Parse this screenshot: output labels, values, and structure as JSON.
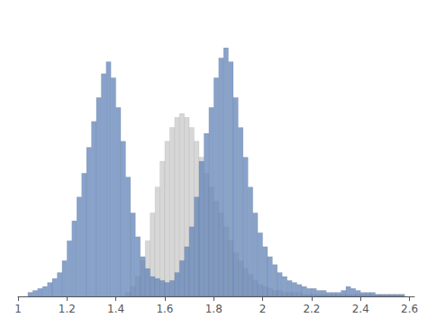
{
  "chart_data": {
    "type": "histogram",
    "series": [
      {
        "color": "#cccccc",
        "bins": [
          1.44,
          1.46,
          1.48,
          1.5,
          1.52,
          1.54,
          1.56,
          1.58,
          1.6,
          1.62,
          1.64,
          1.66,
          1.68,
          1.7,
          1.72,
          1.74,
          1.76,
          1.78,
          1.8,
          1.82,
          1.84,
          1.86,
          1.88,
          1.9,
          1.92,
          1.94,
          1.96,
          1.98,
          2.0,
          2.02,
          2.04,
          2.06,
          2.08,
          2.1,
          2.12,
          2.14,
          2.16,
          2.18,
          2.2,
          2.22,
          2.24,
          2.26,
          2.28,
          2.3,
          2.32,
          2.34,
          2.36,
          2.38,
          2.4,
          2.42,
          2.44,
          2.46,
          2.48,
          2.5,
          2.52,
          2.54,
          2.56,
          2.58
        ],
        "values": [
          2,
          5,
          10,
          18,
          28,
          42,
          55,
          68,
          78,
          85,
          90,
          92,
          90,
          85,
          78,
          70,
          62,
          55,
          48,
          42,
          35,
          28,
          22,
          18,
          14,
          11,
          8,
          6,
          5,
          4,
          3,
          3,
          2,
          2,
          2,
          2,
          1,
          1,
          1,
          1,
          1,
          1,
          1,
          1,
          1,
          1,
          1,
          1,
          1,
          1,
          1,
          1,
          1,
          1,
          1,
          1,
          1
        ]
      },
      {
        "color": "#6688bb",
        "bins": [
          1.04,
          1.06,
          1.08,
          1.1,
          1.12,
          1.14,
          1.16,
          1.18,
          1.2,
          1.22,
          1.24,
          1.26,
          1.28,
          1.3,
          1.32,
          1.34,
          1.36,
          1.38,
          1.4,
          1.42,
          1.44,
          1.46,
          1.48,
          1.5,
          1.52,
          1.54,
          1.56,
          1.58,
          1.6,
          1.62,
          1.64,
          1.66,
          1.68,
          1.7,
          1.72,
          1.74,
          1.76,
          1.78,
          1.8,
          1.82,
          1.84,
          1.86,
          1.88,
          1.9,
          1.92,
          1.94,
          1.96,
          1.98,
          2.0,
          2.02,
          2.04,
          2.06,
          2.08,
          2.1,
          2.12,
          2.14,
          2.16,
          2.18,
          2.2,
          2.22,
          2.24,
          2.26,
          2.28,
          2.3,
          2.32,
          2.34,
          2.36,
          2.38,
          2.4,
          2.42,
          2.44,
          2.46,
          2.48,
          2.5,
          2.52,
          2.54,
          2.56,
          2.58
        ],
        "values": [
          2,
          3,
          4,
          5,
          7,
          9,
          12,
          18,
          28,
          38,
          50,
          62,
          75,
          88,
          100,
          112,
          118,
          110,
          95,
          78,
          60,
          42,
          30,
          20,
          14,
          10,
          9,
          8,
          7,
          8,
          12,
          18,
          25,
          35,
          50,
          68,
          82,
          95,
          110,
          120,
          125,
          118,
          100,
          85,
          70,
          55,
          42,
          32,
          25,
          20,
          16,
          12,
          10,
          8,
          7,
          6,
          5,
          4,
          4,
          3,
          3,
          2,
          2,
          2,
          3,
          5,
          4,
          3,
          2,
          2,
          2,
          1,
          1,
          1,
          1,
          1,
          1
        ]
      }
    ],
    "xlim": [
      1,
      2.62
    ],
    "xticks": [
      1,
      1.2,
      1.4,
      1.6,
      1.8,
      2,
      2.2,
      2.4,
      2.6
    ],
    "ylim": [
      0,
      140
    ],
    "yticks": [],
    "tick_labels": "x",
    "grid": false
  }
}
